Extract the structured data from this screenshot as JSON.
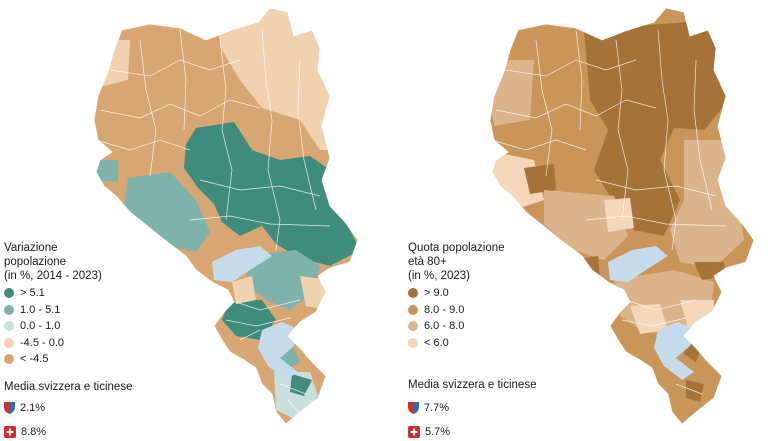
{
  "colors": {
    "teal_dark": "#3f8c7d",
    "teal_mid": "#7db3ab",
    "teal_light": "#c8dfdc",
    "tan_light": "#f1d2b0",
    "tan_mid": "#d8a673",
    "brown_dark": "#a57238",
    "brown_mid": "#c99559",
    "brown_light": "#dcb48c",
    "peach": "#f4d6b8",
    "lake": "#c6dced",
    "swiss_red": "#d72b2b",
    "ticino_blue": "#2a6fb8"
  },
  "left_map": {
    "legend": {
      "title_lines": [
        "Variazione",
        "popolazione",
        "(in %, 2014 - 2023)"
      ],
      "items": [
        {
          "label": "> 5.1",
          "color": "#3f8c7d"
        },
        {
          "label": "1.0 - 5.1",
          "color": "#7db3ab"
        },
        {
          "label": "0.0 - 1.0",
          "color": "#c8dfdc"
        },
        {
          "label": "-4.5 - 0.0",
          "color": "#f1d2b0"
        },
        {
          "label": "< -4.5",
          "color": "#d8a673"
        }
      ]
    },
    "averages": {
      "title": "Media svizzera e ticinese",
      "ticino": "2.1%",
      "switzerland": "8.8%"
    }
  },
  "right_map": {
    "legend": {
      "title_lines": [
        "Quota popolazione",
        "età 80+",
        "(in %, 2023)"
      ],
      "items": [
        {
          "label": "> 9.0",
          "color": "#a57238"
        },
        {
          "label": "8.0 - 9.0",
          "color": "#c99559"
        },
        {
          "label": "6.0 - 8.0",
          "color": "#dcb48c"
        },
        {
          "label": "< 6.0",
          "color": "#f4d6b8"
        }
      ]
    },
    "averages": {
      "title": "Media svizzera e ticinese",
      "ticino": "7.7%",
      "switzerland": "5.7%"
    }
  }
}
